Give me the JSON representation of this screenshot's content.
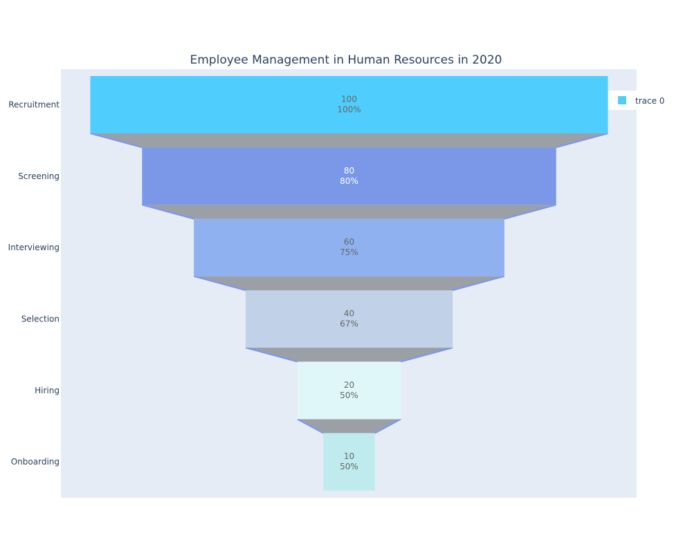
{
  "chart_data": {
    "type": "funnel",
    "title": "Employee Management in Human Resources in 2020",
    "categories": [
      "Recruitment",
      "Screening",
      "Interviewing",
      "Selection",
      "Hiring",
      "Onboarding"
    ],
    "values": [
      100,
      80,
      60,
      40,
      20,
      10
    ],
    "percent_previous": [
      "100%",
      "80%",
      "75%",
      "67%",
      "50%",
      "50%"
    ],
    "bar_colors": [
      "#4fcdfc",
      "#7b98e8",
      "#90b1f0",
      "#c1d2e8",
      "#e0f7f9",
      "#c0ebee"
    ],
    "label_colors": [
      "#666666",
      "#ffffff",
      "#666666",
      "#666666",
      "#666666",
      "#666666"
    ],
    "connector_color": "#9b9fa6",
    "connector_line_color": "#7b96f0",
    "plot_background": "#e5ecf6",
    "legend": {
      "position": "top-right",
      "entries": [
        {
          "name": "trace 0",
          "color": "#4fcdfc"
        }
      ]
    }
  }
}
